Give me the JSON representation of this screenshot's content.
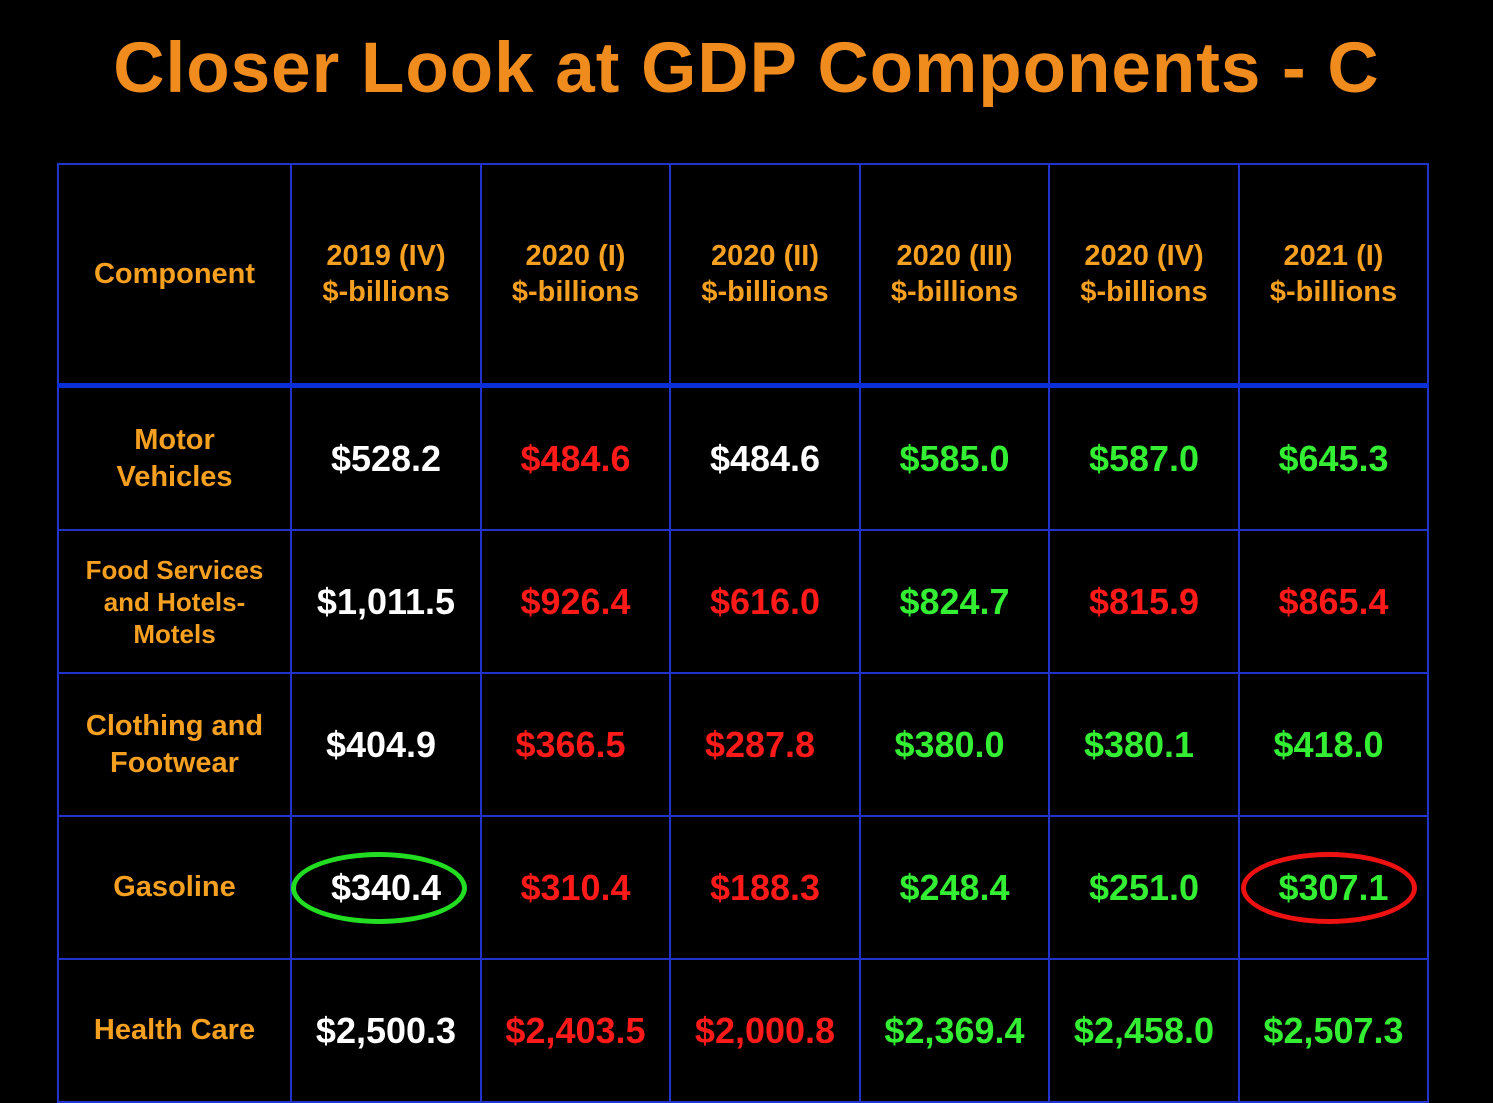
{
  "title": "Closer Look at GDP Components - C",
  "colors": {
    "title": "#f08c1e",
    "header_text": "#f5a020",
    "component_text": "#f5a020",
    "grid": "#2233cc",
    "header_divider": "#0a2fd8",
    "white": "#ffffff",
    "red": "#ff1a1a",
    "green": "#33ee33",
    "ellipse_green": "#22dd22",
    "ellipse_red": "#ee1111"
  },
  "table": {
    "columns": [
      {
        "lines": [
          "Component"
        ]
      },
      {
        "lines": [
          "2019 (IV)",
          "$-billions"
        ]
      },
      {
        "lines": [
          "2020 (I)",
          "$-billions"
        ]
      },
      {
        "lines": [
          "2020 (II)",
          "$-billions"
        ]
      },
      {
        "lines": [
          "2020 (III)",
          "$-billions"
        ]
      },
      {
        "lines": [
          "2020 (IV)",
          "$-billions"
        ]
      },
      {
        "lines": [
          "2021 (I)",
          "$-billions"
        ]
      }
    ],
    "rows": [
      {
        "component": [
          "Motor",
          "Vehicles"
        ],
        "small": false,
        "shift": false,
        "values": [
          "$528.2",
          "$484.6",
          "$484.6",
          "$585.0",
          "$587.0",
          "$645.3"
        ],
        "colors": [
          "white",
          "red",
          "white",
          "green",
          "green",
          "green"
        ]
      },
      {
        "component": [
          "Food Services",
          "and Hotels-",
          "Motels"
        ],
        "small": true,
        "shift": false,
        "values": [
          "$1,011.5",
          "$926.4",
          "$616.0",
          "$824.7",
          "$815.9",
          "$865.4"
        ],
        "colors": [
          "white",
          "red",
          "red",
          "green",
          "red",
          "red"
        ]
      },
      {
        "component": [
          "Clothing and",
          "Footwear"
        ],
        "small": false,
        "shift": true,
        "values": [
          "$404.9",
          "$366.5",
          "$287.8",
          "$380.0",
          "$380.1",
          "$418.0"
        ],
        "colors": [
          "white",
          "red",
          "red",
          "green",
          "green",
          "green"
        ]
      },
      {
        "component": [
          "Gasoline"
        ],
        "small": false,
        "shift": false,
        "values": [
          "$340.4",
          "$310.4",
          "$188.3",
          "$248.4",
          "$251.0",
          "$307.1"
        ],
        "colors": [
          "white",
          "red",
          "red",
          "green",
          "green",
          "green"
        ],
        "circled": {
          "0": "ellipse_green",
          "5": "ellipse_red"
        }
      },
      {
        "component": [
          "Health Care"
        ],
        "small": false,
        "shift": false,
        "values": [
          "$2,500.3",
          "$2,403.5",
          "$2,000.8",
          "$2,369.4",
          "$2,458.0",
          "$2,507.3"
        ],
        "colors": [
          "white",
          "red",
          "red",
          "green",
          "green",
          "green"
        ]
      }
    ]
  }
}
